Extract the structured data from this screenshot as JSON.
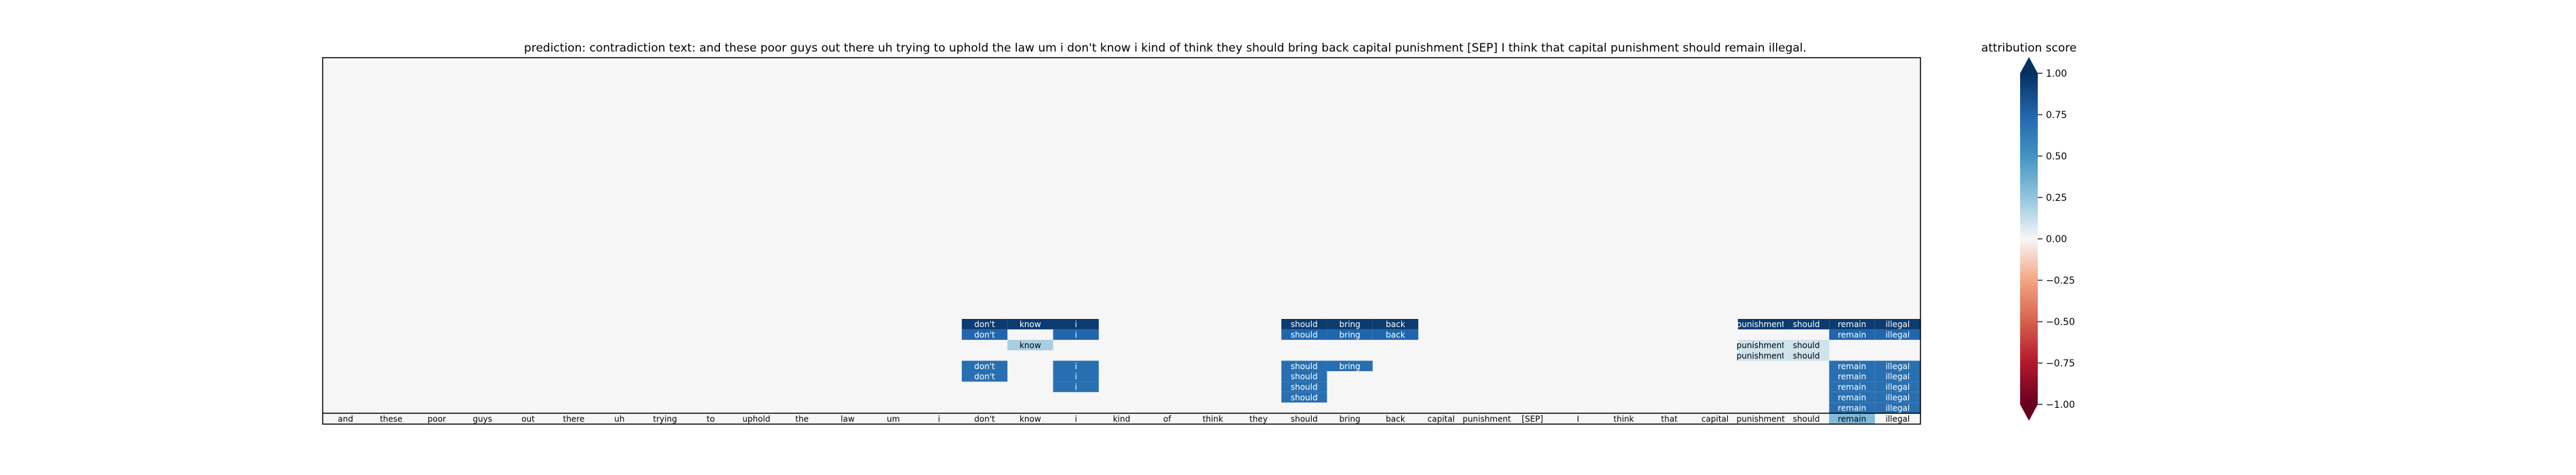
{
  "chart_data": {
    "type": "heatmap",
    "title": "prediction:  contradiction     text:  and these poor guys out there uh trying to uphold the law um i don't know i kind of think they should bring back capital punishment [SEP] I think that capital punishment should remain illegal.",
    "tokens": [
      "and",
      "these",
      "poor",
      "guys",
      "out",
      "there",
      "uh",
      "trying",
      "to",
      "uphold",
      "the",
      "law",
      "um",
      "i",
      "don't",
      "know",
      "i",
      "kind",
      "of",
      "think",
      "they",
      "should",
      "bring",
      "back",
      "capital",
      "punishment",
      "[SEP]",
      "I",
      "think",
      "that",
      "capital",
      "punishment",
      "should",
      "remain",
      "illegal"
    ],
    "row_values": [
      [
        0,
        0,
        0,
        0,
        0,
        0,
        0,
        0,
        0,
        0,
        0,
        0,
        0,
        0,
        0.95,
        0.95,
        0.95,
        0,
        0,
        0,
        0,
        0.95,
        0.95,
        0.95,
        0,
        0,
        0,
        0,
        0,
        0,
        0,
        0.95,
        0.95,
        0.95,
        0.95
      ],
      [
        0,
        0,
        0,
        0,
        0,
        0,
        0,
        0,
        0,
        0,
        0,
        0,
        0,
        0,
        0.75,
        0,
        0.75,
        0,
        0,
        0,
        0,
        0.75,
        0.75,
        0.75,
        0,
        0,
        0,
        0,
        0,
        0,
        0,
        0,
        0,
        0.75,
        0.75
      ],
      [
        0,
        0,
        0,
        0,
        0,
        0,
        0,
        0,
        0,
        0,
        0,
        0,
        0,
        0,
        0,
        0.2,
        0,
        0,
        0,
        0,
        0,
        0,
        0,
        0,
        0,
        0,
        0,
        0,
        0,
        0,
        0,
        0.1,
        0.1,
        0,
        0
      ],
      [
        0,
        0,
        0,
        0,
        0,
        0,
        0,
        0,
        0,
        0,
        0,
        0,
        0,
        0,
        0,
        0,
        0,
        0,
        0,
        0,
        0,
        0,
        0,
        0,
        0,
        0,
        0,
        0,
        0,
        0,
        0,
        0.1,
        0.1,
        0,
        0
      ],
      [
        0,
        0,
        0,
        0,
        0,
        0,
        0,
        0,
        0,
        0,
        0,
        0,
        0,
        0,
        0.7,
        0,
        0.7,
        0,
        0,
        0,
        0,
        0.7,
        0.7,
        0,
        0,
        0,
        0,
        0,
        0,
        0,
        0,
        0,
        0,
        0.7,
        0.7
      ],
      [
        0,
        0,
        0,
        0,
        0,
        0,
        0,
        0,
        0,
        0,
        0,
        0,
        0,
        0,
        0.7,
        0,
        0.7,
        0,
        0,
        0,
        0,
        0.7,
        0,
        0,
        0,
        0,
        0,
        0,
        0,
        0,
        0,
        0,
        0,
        0.7,
        0.7
      ],
      [
        0,
        0,
        0,
        0,
        0,
        0,
        0,
        0,
        0,
        0,
        0,
        0,
        0,
        0,
        0,
        0,
        0.7,
        0,
        0,
        0,
        0,
        0.7,
        0,
        0,
        0,
        0,
        0,
        0,
        0,
        0,
        0,
        0,
        0,
        0.7,
        0.7
      ],
      [
        0,
        0,
        0,
        0,
        0,
        0,
        0,
        0,
        0,
        0,
        0,
        0,
        0,
        0,
        0,
        0,
        0,
        0,
        0,
        0,
        0,
        0.7,
        0,
        0,
        0,
        0,
        0,
        0,
        0,
        0,
        0,
        0,
        0,
        0.7,
        0.7
      ],
      [
        0,
        0,
        0,
        0,
        0,
        0,
        0,
        0,
        0,
        0,
        0,
        0,
        0,
        0,
        0,
        0,
        0,
        0,
        0,
        0,
        0,
        0,
        0,
        0,
        0,
        0,
        0,
        0,
        0,
        0,
        0,
        0,
        0,
        0.7,
        0.7
      ],
      [
        0,
        0,
        0,
        0,
        0,
        0,
        0,
        0,
        0,
        0,
        0,
        0,
        0,
        0,
        0,
        0,
        0,
        0,
        0,
        0,
        0,
        0,
        0,
        0,
        0,
        0,
        0,
        0,
        0,
        0,
        0,
        0,
        0,
        0.3,
        0
      ]
    ],
    "colorbar": {
      "label": "attribution score",
      "range": [
        -1.0,
        1.0
      ],
      "ticks": [
        "1.00",
        "0.75",
        "0.50",
        "0.25",
        "0.00",
        "−0.25",
        "−0.50",
        "−0.75",
        "−1.00"
      ],
      "tick_values": [
        1.0,
        0.75,
        0.5,
        0.25,
        0.0,
        -0.25,
        -0.5,
        -0.75,
        -1.0
      ],
      "colormap": "RdBu"
    },
    "background_color": "#f5f6f5"
  }
}
